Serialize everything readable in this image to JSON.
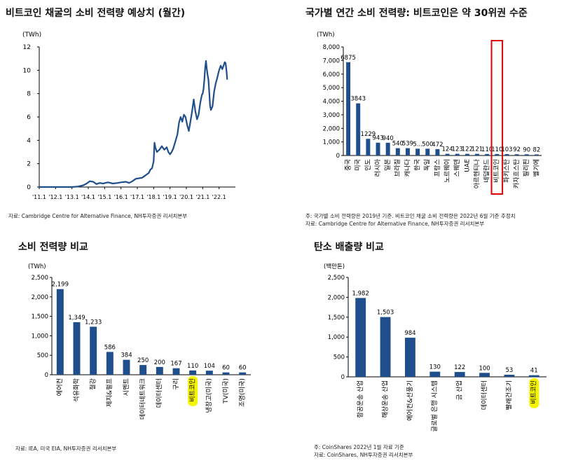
{
  "charts": {
    "c1": {
      "title": "비트코인 채굴의 소비 전력량 예상치 (월간)",
      "unit": "(TWh)",
      "source": "자료: Cambridge Centre for Alternative Finance, NH투자증권 리서치본부"
    },
    "c2": {
      "title": "국가별 연간 소비 전력량: 비트코인은 약 30위권 수준",
      "unit": "(TWh)",
      "note1": "주: 국가별 소비 전력량은 2019년 기준. 비트코인 채굴 소비 전력량은 2022년 6월 기준 추정치",
      "note2": "자료: Cambridge Centre for Alternative Finance, NH투자증권 리서치본부"
    },
    "c3": {
      "title": "소비 전력량 비교",
      "unit": "(TWh)",
      "source": "자료: IEA, 미국 EIA, NH투자증권 리서치본부"
    },
    "c4": {
      "title": "탄소 배출량 비교",
      "unit": "(백만톤)",
      "note1": "주: CoinShares 2022년 1월 자료 기준",
      "note2": "자료: CoinShares, NH투자증권 리서치본부"
    }
  },
  "chart_data": [
    {
      "type": "line",
      "title": "비트코인 채굴의 소비 전력량 예상치 (월간)",
      "ylabel": "(TWh)",
      "ylim": [
        0,
        12
      ],
      "yticks": [
        0,
        2,
        4,
        6,
        8,
        10,
        12
      ],
      "xlim": [
        2011.0,
        2023.0
      ],
      "xticks": [
        {
          "x": 2011.0,
          "label": "'11.1"
        },
        {
          "x": 2012.0,
          "label": "'12.1"
        },
        {
          "x": 2013.0,
          "label": "'13.1"
        },
        {
          "x": 2014.0,
          "label": "'14.1"
        },
        {
          "x": 2015.0,
          "label": "'15.1"
        },
        {
          "x": 2016.0,
          "label": "'16.1"
        },
        {
          "x": 2017.0,
          "label": "'17.1"
        },
        {
          "x": 2018.0,
          "label": "'18.1"
        },
        {
          "x": 2019.0,
          "label": "'19.1"
        },
        {
          "x": 2020.0,
          "label": "'20.1"
        },
        {
          "x": 2021.0,
          "label": "'21.1"
        },
        {
          "x": 2022.0,
          "label": "'22.1"
        }
      ],
      "x": [
        2011.0,
        2013.0,
        2013.4,
        2013.7,
        2013.9,
        2014.1,
        2014.3,
        2014.5,
        2014.7,
        2014.9,
        2015.2,
        2015.5,
        2015.8,
        2016.0,
        2016.3,
        2016.5,
        2016.7,
        2016.9,
        2017.1,
        2017.3,
        2017.5,
        2017.7,
        2017.8,
        2017.9,
        2018.0,
        2018.05,
        2018.1,
        2018.2,
        2018.35,
        2018.5,
        2018.65,
        2018.8,
        2018.9,
        2019.0,
        2019.1,
        2019.2,
        2019.35,
        2019.45,
        2019.55,
        2019.65,
        2019.75,
        2019.85,
        2019.95,
        2020.05,
        2020.15,
        2020.25,
        2020.35,
        2020.45,
        2020.55,
        2020.65,
        2020.75,
        2020.85,
        2020.95,
        2021.0,
        2021.05,
        2021.1,
        2021.15,
        2021.2,
        2021.25,
        2021.3,
        2021.35,
        2021.4,
        2021.45,
        2021.5,
        2021.6,
        2021.7,
        2021.8,
        2021.9,
        2022.0,
        2022.1,
        2022.2,
        2022.3,
        2022.35,
        2022.4,
        2022.45,
        2022.5
      ],
      "y": [
        0.0,
        0.0,
        0.05,
        0.15,
        0.3,
        0.5,
        0.45,
        0.25,
        0.35,
        0.3,
        0.4,
        0.3,
        0.35,
        0.4,
        0.45,
        0.35,
        0.5,
        0.7,
        0.75,
        0.8,
        1.0,
        1.2,
        1.5,
        1.6,
        2.2,
        3.8,
        3.4,
        3.0,
        3.2,
        3.5,
        3.2,
        3.4,
        3.0,
        2.8,
        3.0,
        3.3,
        4.0,
        4.5,
        5.5,
        6.0,
        5.6,
        6.2,
        6.0,
        5.3,
        4.8,
        5.6,
        6.5,
        7.5,
        6.5,
        5.8,
        6.2,
        7.2,
        7.9,
        8.0,
        8.4,
        9.2,
        10.2,
        10.8,
        10.1,
        9.6,
        9.2,
        8.1,
        7.0,
        6.6,
        6.9,
        8.2,
        8.9,
        9.4,
        10.0,
        10.4,
        10.1,
        10.5,
        10.7,
        10.6,
        10.0,
        9.2
      ],
      "color": "#1f4e8c"
    },
    {
      "type": "bar",
      "title": "국가별 연간 소비 전력량: 비트코인은 약 30위권 수준",
      "ylabel": "(TWh)",
      "ylim": [
        0,
        8000
      ],
      "yticks": [
        0,
        1000,
        2000,
        3000,
        4000,
        5000,
        6000,
        7000,
        8000
      ],
      "categories": [
        "중국",
        "미국",
        "인도",
        "러시아",
        "일본",
        "브라질",
        "캐나다",
        "한국",
        "독일",
        "프랑스",
        "노르웨이",
        "스웨덴",
        "UAE",
        "아르헨티나",
        "네덜란드",
        "비트코인",
        "파키스탄",
        "카자흐스탄",
        "필리핀",
        "벨기에"
      ],
      "values": [
        6875,
        3843,
        1229,
        943,
        940,
        540,
        539,
        500,
        500,
        472,
        124,
        123,
        122,
        121,
        110,
        110,
        103,
        92,
        90,
        82
      ],
      "labels": [
        "6875",
        "3843",
        "1229",
        "943",
        "940",
        "540",
        "539",
        "5...",
        "500",
        "472",
        "124",
        "123",
        "122",
        "121",
        "110",
        "110",
        "103",
        "92",
        "90",
        "82"
      ],
      "highlight_category": "비트코인",
      "highlight_style": "red box"
    },
    {
      "type": "bar",
      "title": "소비 전력량 비교",
      "ylabel": "(TWh)",
      "ylim": [
        0,
        2500
      ],
      "yticks": [
        0,
        500,
        1000,
        1500,
        2000,
        2500
      ],
      "categories": [
        "에어컨",
        "석유화학",
        "철강",
        "제지&펄프",
        "시멘트",
        "데이터네트워크",
        "데이터센터",
        "구리",
        "비트코인",
        "냉장고(미국)",
        "TV(미국)",
        "조명(미국)"
      ],
      "values": [
        2199,
        1349,
        1233,
        586,
        384,
        250,
        200,
        167,
        110,
        104,
        60,
        60
      ],
      "labels": [
        "2,199",
        "1,349",
        "1,233",
        "586",
        "384",
        "250",
        "200",
        "167",
        "110",
        "104",
        "60",
        "60"
      ],
      "highlight_category": "비트코인",
      "highlight_style": "yellow marker"
    },
    {
      "type": "bar",
      "title": "탄소 배출량 비교",
      "ylabel": "(백만톤)",
      "ylim": [
        0,
        2500
      ],
      "yticks": [
        0,
        500,
        1000,
        1500,
        2000,
        2500
      ],
      "categories": [
        "항공운송 산업",
        "해상운송 산업",
        "에어컨&선풍기",
        "글로벌 은행 시스템",
        "금 산업",
        "데이터센터",
        "빨래건조기",
        "비트코인"
      ],
      "values": [
        1982,
        1503,
        984,
        130,
        122,
        100,
        53,
        41
      ],
      "labels": [
        "1,982",
        "1,503",
        "984",
        "130",
        "122",
        "100",
        "53",
        "41"
      ],
      "highlight_category": "비트코인",
      "highlight_style": "yellow marker"
    }
  ]
}
